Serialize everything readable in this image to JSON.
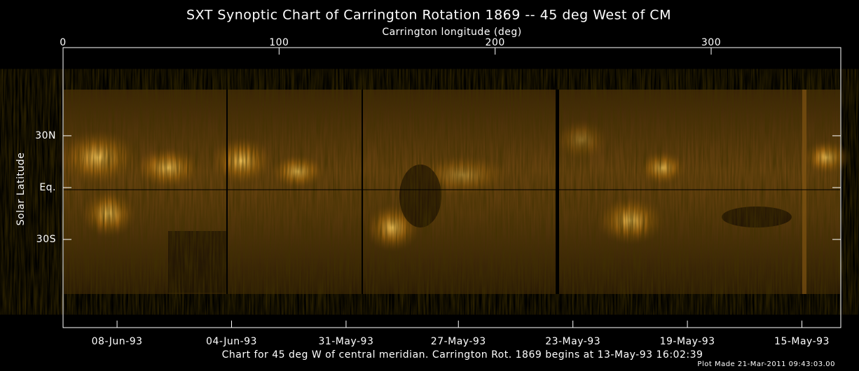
{
  "chart_data": {
    "type": "image",
    "title": "SXT Synoptic Chart of Carrington Rotation 1869 -- 45 deg West of CM",
    "x_label": "Carrington longitude (deg)",
    "y_label": "Solar Latitude",
    "xlim": [
      0,
      360
    ],
    "xticks": [
      0,
      100,
      200,
      300
    ],
    "ylim": [
      -81,
      81
    ],
    "yticks": [
      {
        "value": 30,
        "label": "30N"
      },
      {
        "value": 0,
        "label": "Eq."
      },
      {
        "value": -30,
        "label": "30S"
      }
    ],
    "date_ticks": [
      {
        "value": 25,
        "label": "08-Jun-93"
      },
      {
        "value": 78,
        "label": "04-Jun-93"
      },
      {
        "value": 131,
        "label": "31-May-93"
      },
      {
        "value": 183,
        "label": "27-May-93"
      },
      {
        "value": 236,
        "label": "23-May-93"
      },
      {
        "value": 289,
        "label": "19-May-93"
      },
      {
        "value": 342,
        "label": "15-May-93"
      }
    ],
    "caption": "Chart for 45 deg W of central meridian.  Carrington Rot. 1869 begins at 13-May-93 16:02:39",
    "footnote": "Plot Made 21-Mar-2011 09:43:03.00"
  }
}
